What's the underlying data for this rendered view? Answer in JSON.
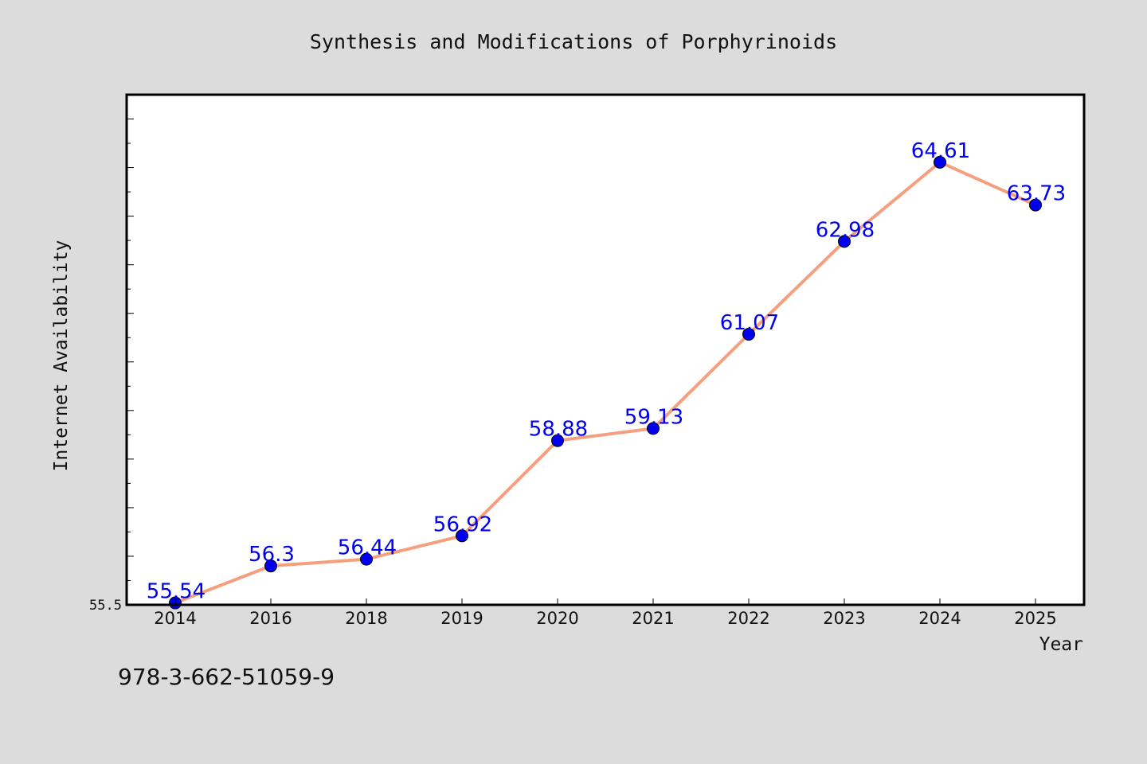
{
  "chart_data": {
    "type": "line",
    "title": "Synthesis and Modifications of Porphyrinoids",
    "xlabel": "Year",
    "ylabel": "Internet Availability",
    "categories": [
      "2014",
      "2016",
      "2018",
      "2019",
      "2020",
      "2021",
      "2022",
      "2023",
      "2024",
      "2025"
    ],
    "values": [
      55.54,
      56.3,
      56.44,
      56.92,
      58.88,
      59.13,
      61.07,
      62.98,
      64.61,
      63.73
    ],
    "data_labels": [
      "55.54",
      "56.3",
      "56.44",
      "56.92",
      "58.88",
      "59.13",
      "61.07",
      "62.98",
      "64.61",
      "63.73"
    ],
    "y_tick_label": "55.5",
    "ylim": [
      55.5,
      66.0
    ],
    "grid": false,
    "legend": "none"
  },
  "footer": {
    "isbn": "978-3-662-51059-9"
  },
  "colors": {
    "background": "#dcdcdc",
    "plot_background": "#ffffff",
    "line": "#f4a07f",
    "marker": "#0000ee",
    "data_label": "#0000ee"
  }
}
